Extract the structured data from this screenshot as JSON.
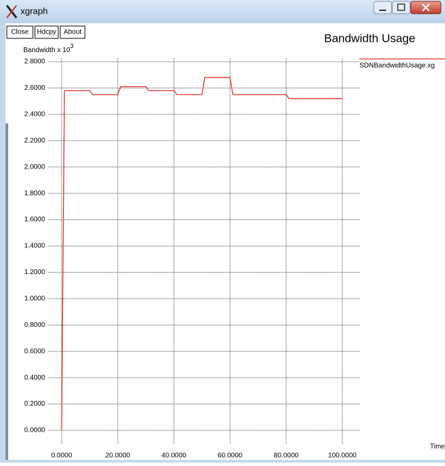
{
  "window": {
    "title": "xgraph",
    "buttons": [
      "Close",
      "Hdcpy",
      "About"
    ]
  },
  "chart_data": {
    "type": "line",
    "title": "Bandwidth Usage",
    "ylabel": "Bandwidth x 10",
    "ylabel_exponent": "3",
    "xlabel": "Time",
    "x": [
      0,
      1,
      10,
      11,
      20,
      21,
      30,
      31,
      40,
      41,
      50,
      51,
      60,
      61,
      80,
      81,
      100
    ],
    "series": [
      {
        "name": "SDNBandwidthUsage.xg",
        "color": "#d93030",
        "values": [
          0,
          2.58,
          2.58,
          2.55,
          2.55,
          2.61,
          2.61,
          2.58,
          2.58,
          2.55,
          2.55,
          2.68,
          2.68,
          2.55,
          2.55,
          2.52,
          2.52
        ]
      }
    ],
    "xlim": [
      0,
      100
    ],
    "xticks": [
      {
        "value": 0,
        "label": "0.0000"
      },
      {
        "value": 20,
        "label": "20.0000"
      },
      {
        "value": 40,
        "label": "40.0000"
      },
      {
        "value": 60,
        "label": "60.0000"
      },
      {
        "value": 80,
        "label": "80.0000"
      },
      {
        "value": 100,
        "label": "100.0000"
      }
    ],
    "ylim": [
      0,
      2.8
    ],
    "yticks": [
      {
        "value": 0,
        "label": "0.0000"
      },
      {
        "value": 0.2,
        "label": "0.2000"
      },
      {
        "value": 0.4,
        "label": "0.4000"
      },
      {
        "value": 0.6,
        "label": "0.6000"
      },
      {
        "value": 0.8,
        "label": "0.8000"
      },
      {
        "value": 1.0,
        "label": "1.0000"
      },
      {
        "value": 1.2,
        "label": "1.2000"
      },
      {
        "value": 1.4,
        "label": "1.4000"
      },
      {
        "value": 1.6,
        "label": "1.6000"
      },
      {
        "value": 1.8,
        "label": "1.8000"
      },
      {
        "value": 2.0,
        "label": "2.0000"
      },
      {
        "value": 2.2,
        "label": "2.2000"
      },
      {
        "value": 2.4,
        "label": "2.4000"
      },
      {
        "value": 2.6,
        "label": "2.6000"
      },
      {
        "value": 2.8,
        "label": "2.8000"
      }
    ],
    "grid": true
  }
}
